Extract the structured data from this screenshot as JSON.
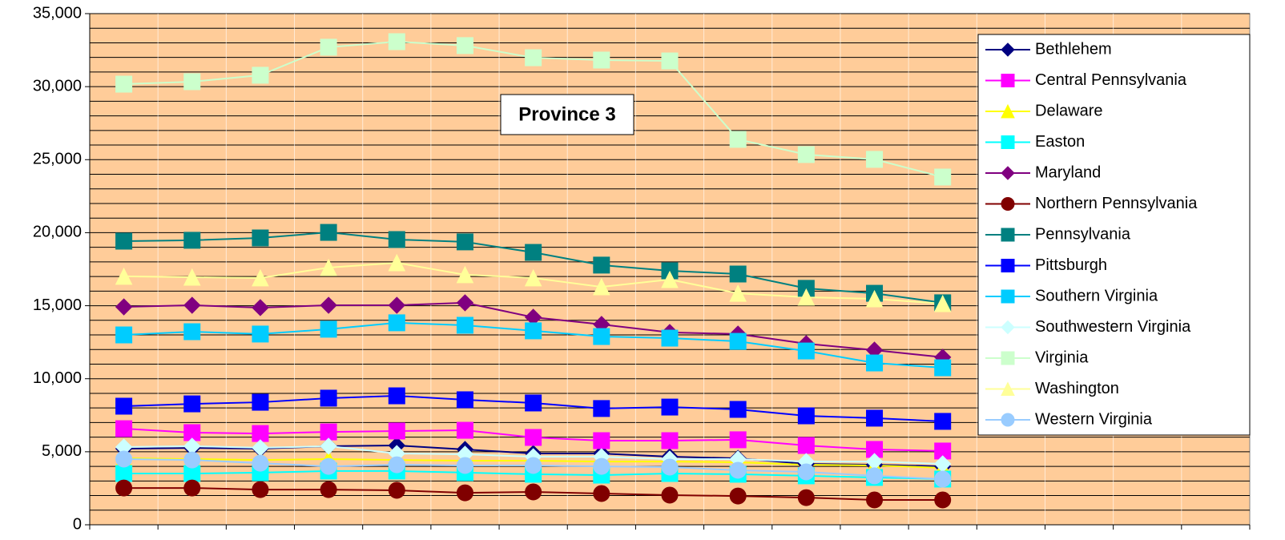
{
  "chart_data": {
    "type": "line",
    "title": "Province 3",
    "categories": [
      null,
      null,
      null,
      null,
      null,
      null,
      null,
      null,
      null,
      null,
      null,
      null,
      null,
      null,
      null,
      null,
      null
    ],
    "ylim": [
      0,
      35000
    ],
    "yticks": [
      {
        "value": 0,
        "label": "0"
      },
      {
        "value": 5000,
        "label": "5,000"
      },
      {
        "value": 10000,
        "label": "10,000"
      },
      {
        "value": 15000,
        "label": "15,000"
      },
      {
        "value": 20000,
        "label": "20,000"
      },
      {
        "value": 25000,
        "label": "25,000"
      },
      {
        "value": 30000,
        "label": "30,000"
      },
      {
        "value": 35000,
        "label": "35,000"
      }
    ],
    "y_minor_ticks": [
      1000,
      2000,
      3000,
      4000,
      6000,
      7000,
      8000,
      9000,
      11000,
      12000,
      13000,
      14000,
      16000,
      17000,
      18000,
      19000,
      21000,
      22000,
      23000,
      24000,
      26000,
      27000,
      28000,
      29000,
      31000,
      32000,
      33000,
      34000
    ],
    "grid": true,
    "legend": "right",
    "background": "#ffcc99",
    "series": [
      {
        "name": "Bethlehem",
        "color": "#000080",
        "marker": "diamond",
        "values": [
          5210,
          5260,
          5210,
          5380,
          5430,
          5160,
          4880,
          4880,
          4660,
          4550,
          4170,
          4110,
          4000,
          null,
          null,
          null,
          null
        ]
      },
      {
        "name": "Central Pennsylvania",
        "color": "#ff00ff",
        "marker": "square",
        "values": [
          6580,
          6310,
          6250,
          6360,
          6420,
          6470,
          5980,
          5760,
          5760,
          5820,
          5430,
          5160,
          5050,
          null,
          null,
          null,
          null
        ]
      },
      {
        "name": "Delaware",
        "color": "#ffff00",
        "marker": "triangle",
        "values": [
          4550,
          4500,
          4440,
          4500,
          4440,
          4390,
          4390,
          4330,
          4330,
          4280,
          4110,
          4060,
          3900,
          null,
          null,
          null,
          null
        ]
      },
      {
        "name": "Easton",
        "color": "#00ffff",
        "marker": "square",
        "values": [
          3510,
          3510,
          3570,
          3680,
          3680,
          3570,
          3460,
          3400,
          3510,
          3460,
          3350,
          3240,
          3130,
          null,
          null,
          null,
          null
        ]
      },
      {
        "name": "Maryland",
        "color": "#800080",
        "marker": "diamond",
        "values": [
          14920,
          15030,
          14870,
          15030,
          15030,
          15200,
          14210,
          13720,
          13170,
          13060,
          12400,
          11960,
          11470,
          null,
          null,
          null,
          null
        ]
      },
      {
        "name": "Northern Pennsylvania",
        "color": "#800000",
        "marker": "circle",
        "values": [
          2520,
          2520,
          2410,
          2410,
          2360,
          2190,
          2250,
          2140,
          2030,
          1970,
          1860,
          1700,
          1700,
          null,
          null,
          null,
          null
        ]
      },
      {
        "name": "Pennsylvania",
        "color": "#008080",
        "marker": "square",
        "values": [
          19420,
          19480,
          19640,
          20020,
          19530,
          19370,
          18650,
          17780,
          17390,
          17170,
          16190,
          15850,
          15200,
          null,
          null,
          null,
          null
        ]
      },
      {
        "name": "Pittsburgh",
        "color": "#0000ff",
        "marker": "square",
        "values": [
          8120,
          8280,
          8390,
          8670,
          8830,
          8560,
          8340,
          7960,
          8060,
          7900,
          7460,
          7300,
          7080,
          null,
          null,
          null,
          null
        ]
      },
      {
        "name": "Southern Virginia",
        "color": "#00ccff",
        "marker": "square",
        "values": [
          13000,
          13220,
          13060,
          13390,
          13830,
          13660,
          13280,
          12890,
          12780,
          12560,
          11900,
          11080,
          10750,
          null,
          null,
          null,
          null
        ]
      },
      {
        "name": "Southwestern Virginia",
        "color": "#ccffff",
        "marker": "diamond",
        "values": [
          5320,
          5380,
          5270,
          5380,
          4880,
          4830,
          4660,
          4660,
          4500,
          4500,
          4330,
          4330,
          4170,
          null,
          null,
          null,
          null
        ]
      },
      {
        "name": "Virginia",
        "color": "#ccffcc",
        "marker": "square",
        "values": [
          30170,
          30340,
          30780,
          32700,
          33080,
          32810,
          31980,
          31820,
          31760,
          26390,
          25350,
          25020,
          23810,
          null,
          null,
          null,
          null
        ]
      },
      {
        "name": "Washington",
        "color": "#ffff99",
        "marker": "triangle",
        "values": [
          17010,
          16950,
          16900,
          17610,
          17940,
          17120,
          16900,
          16290,
          16790,
          15850,
          15580,
          15470,
          15140,
          null,
          null,
          null,
          null
        ]
      },
      {
        "name": "Western Virginia",
        "color": "#99ccff",
        "marker": "circle",
        "values": [
          4500,
          4440,
          4220,
          4000,
          4110,
          4060,
          4060,
          4000,
          3950,
          3730,
          3620,
          3350,
          3130,
          null,
          null,
          null,
          null
        ]
      }
    ]
  }
}
